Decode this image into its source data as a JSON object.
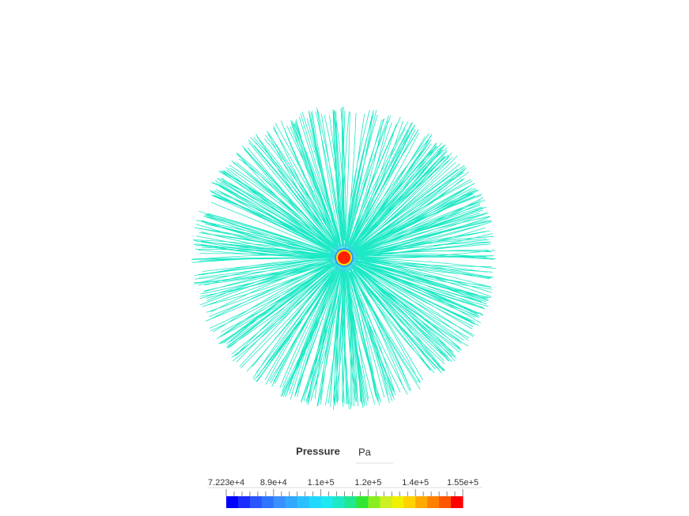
{
  "legend": {
    "title": "Pressure",
    "unit": "Pa",
    "tick_labels": [
      "7.223e+4",
      "8.9e+4",
      "1.1e+5",
      "1.2e+5",
      "1.4e+5",
      "1.55e+5"
    ]
  }
}
